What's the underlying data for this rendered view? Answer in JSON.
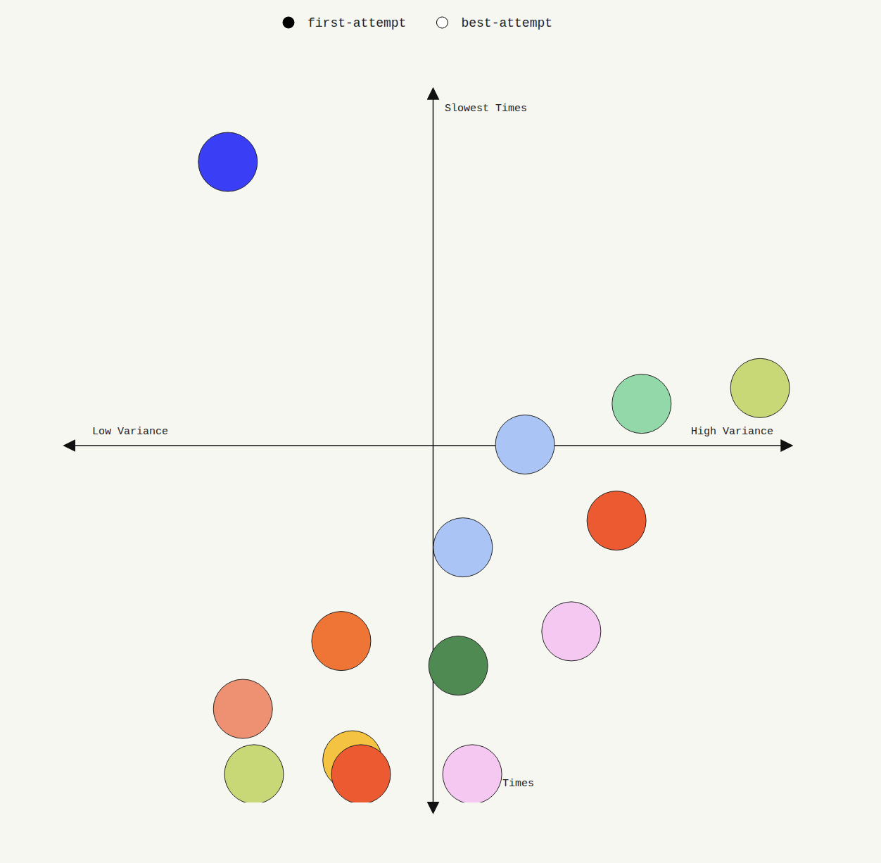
{
  "chart_data": {
    "type": "scatter",
    "axis_labels": {
      "top": "Slowest Times",
      "bottom": "Times",
      "left": "Low Variance",
      "right": "High Variance"
    },
    "xlim": [
      -1,
      1
    ],
    "ylim": [
      -1,
      1
    ],
    "tick_labels": false,
    "grid": false,
    "legend": "top",
    "series": [
      {
        "name": "first-attempt",
        "marker": "filled",
        "x": [
          -0.571,
          0.582,
          0.912,
          0.257,
          0.512,
          0.084,
          0.386,
          -0.255,
          0.071,
          -0.529,
          -0.498,
          -0.224,
          -0.2,
          0.11
        ],
        "values": [
          0.793,
          0.116,
          0.16,
          0.002,
          -0.211,
          -0.286,
          -0.521,
          -0.548,
          -0.617,
          -0.738,
          -0.921,
          -0.882,
          -0.921,
          -0.921
        ],
        "colors": [
          "#3a3ff5",
          "#92d8a8",
          "#c8d877",
          "#a9c4f5",
          "#ec5a32",
          "#a9c4f5",
          "#f5c8f2",
          "#ee7535",
          "#4e8a52",
          "#ee9173",
          "#c8d877",
          "#f4c342",
          "#ec5a32",
          "#f5c8f2"
        ]
      },
      {
        "name": "best-attempt",
        "marker": "hollow",
        "x": [],
        "values": []
      }
    ]
  }
}
